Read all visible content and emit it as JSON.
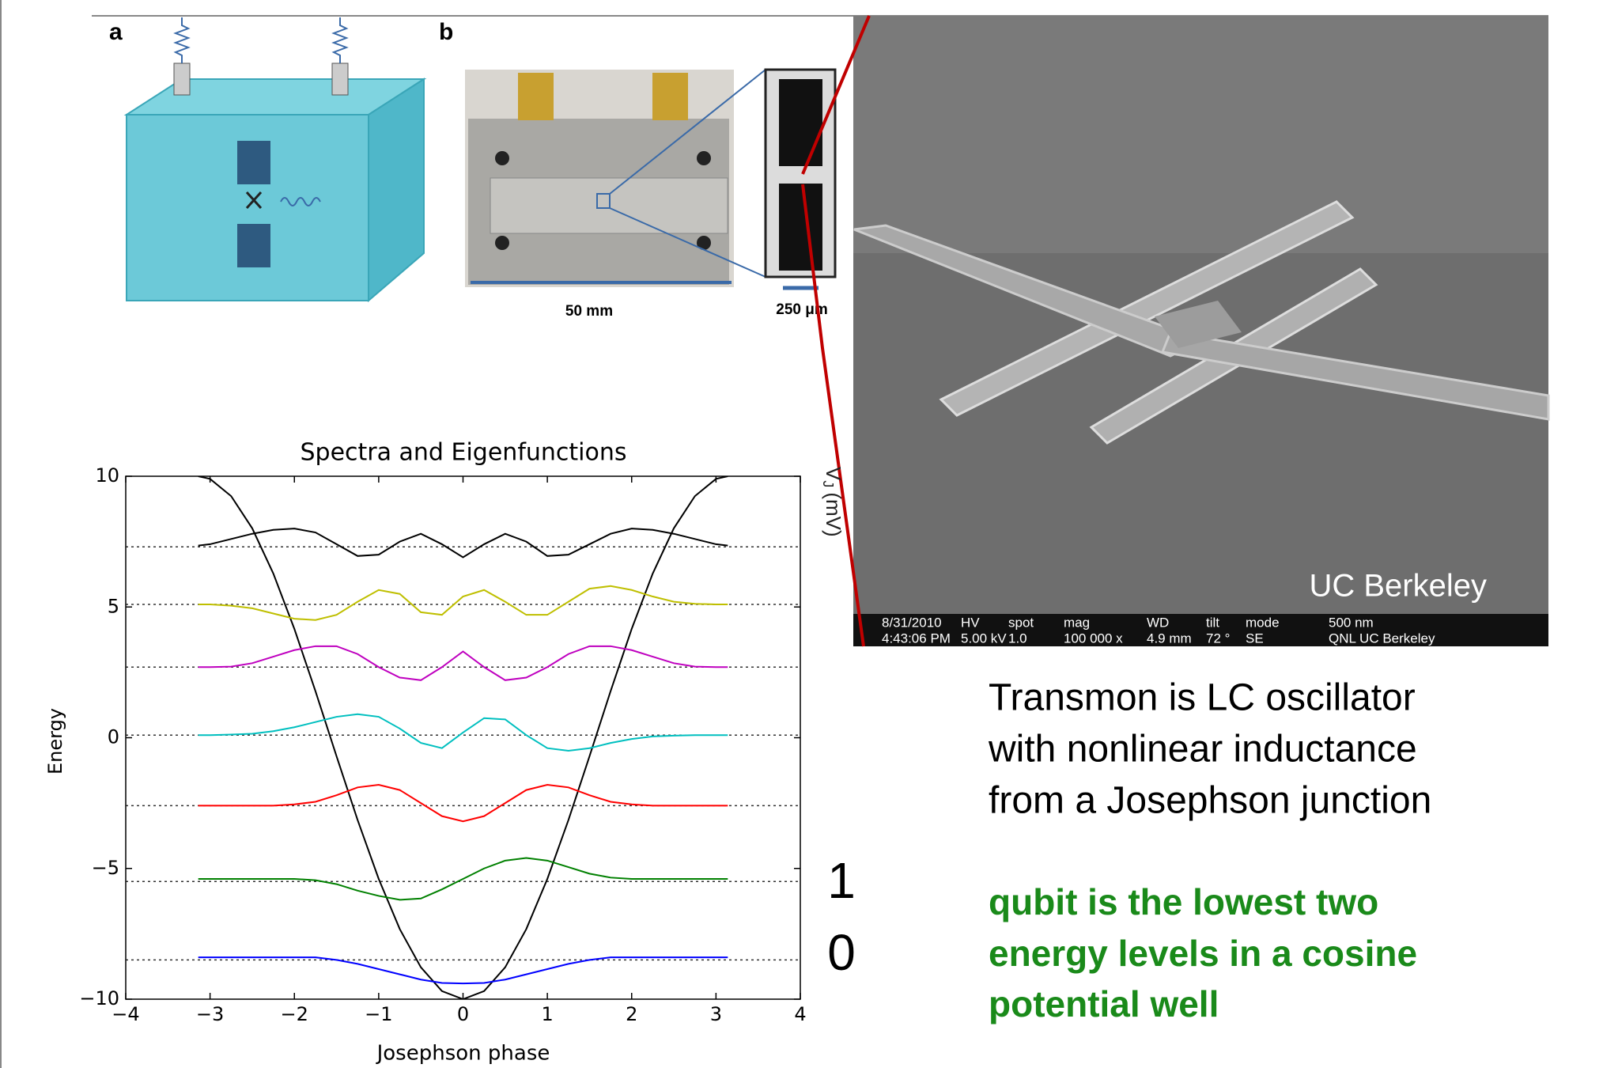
{
  "panel_a": {
    "label": "a"
  },
  "panel_b": {
    "label": "b",
    "scale_left": "50 mm",
    "scale_right": "250 μm"
  },
  "sem": {
    "watermark": "UC Berkeley",
    "info_headers": [
      "8/31/2010",
      "HV",
      "spot",
      "mag",
      "WD",
      "tilt",
      "mode",
      "500 nm"
    ],
    "info_values": [
      "4:43:06 PM",
      "5.00 kV",
      "1.0",
      "100 000 x",
      "4.9 mm",
      "72 °",
      "SE",
      "QNL UC Berkeley"
    ]
  },
  "side_axis_label": {
    "symbol": "V",
    "subscript": "J",
    "unit": "(mV)"
  },
  "level_labels": [
    "1",
    "0"
  ],
  "description": [
    "Transmon is LC oscillator",
    "with nonlinear inductance",
    "from a Josephson junction"
  ],
  "highlight": [
    "qubit is the lowest two",
    "energy levels in a cosine",
    "potential well"
  ],
  "chart_data": {
    "type": "line",
    "title": "Spectra and Eigenfunctions",
    "x_label": "Josephson phase",
    "y_label": "Energy",
    "x": [
      -3.14,
      -3,
      -2.75,
      -2.5,
      -2.25,
      -2,
      -1.75,
      -1.5,
      -1.25,
      -1,
      -0.75,
      -0.5,
      -0.25,
      0,
      0.25,
      0.5,
      0.75,
      1,
      1.25,
      1.5,
      1.75,
      2,
      2.25,
      2.5,
      2.75,
      3,
      3.14
    ],
    "series": [
      {
        "color": "#000000",
        "values": [
          10,
          9.9,
          9.24,
          8.01,
          6.28,
          4.16,
          1.78,
          -0.71,
          -3.15,
          -5.4,
          -7.32,
          -8.78,
          -9.69,
          -10,
          -9.69,
          -8.78,
          -7.32,
          -5.4,
          -3.15,
          -0.71,
          1.78,
          4.16,
          6.28,
          8.01,
          9.24,
          9.9,
          10
        ]
      },
      {
        "color": "#000000",
        "values": [
          7.35,
          7.4,
          7.6,
          7.8,
          7.95,
          8.0,
          7.85,
          7.4,
          6.95,
          7.0,
          7.5,
          7.8,
          7.4,
          6.9,
          7.4,
          7.8,
          7.5,
          6.95,
          7.0,
          7.4,
          7.8,
          8.0,
          7.95,
          7.8,
          7.6,
          7.4,
          7.35
        ]
      },
      {
        "color": "#bfbf00",
        "values": [
          5.1,
          5.1,
          5.05,
          4.95,
          4.75,
          4.55,
          4.5,
          4.7,
          5.2,
          5.65,
          5.5,
          4.8,
          4.7,
          5.4,
          5.65,
          5.2,
          4.7,
          4.7,
          5.2,
          5.7,
          5.8,
          5.65,
          5.4,
          5.2,
          5.12,
          5.1,
          5.1
        ]
      },
      {
        "color": "#bf00bf",
        "values": [
          2.7,
          2.7,
          2.72,
          2.85,
          3.1,
          3.35,
          3.5,
          3.5,
          3.2,
          2.7,
          2.3,
          2.2,
          2.7,
          3.3,
          2.7,
          2.2,
          2.3,
          2.7,
          3.2,
          3.5,
          3.5,
          3.35,
          3.1,
          2.85,
          2.72,
          2.7,
          2.7
        ]
      },
      {
        "color": "#00bfbf",
        "values": [
          0.1,
          0.1,
          0.12,
          0.15,
          0.25,
          0.4,
          0.6,
          0.8,
          0.9,
          0.8,
          0.35,
          -0.2,
          -0.4,
          0.2,
          0.75,
          0.7,
          0.1,
          -0.4,
          -0.5,
          -0.4,
          -0.2,
          -0.05,
          0.05,
          0.08,
          0.1,
          0.1,
          0.1
        ]
      },
      {
        "color": "#ff0000",
        "values": [
          -2.6,
          -2.6,
          -2.6,
          -2.6,
          -2.6,
          -2.55,
          -2.45,
          -2.2,
          -1.9,
          -1.8,
          -2.0,
          -2.5,
          -3.0,
          -3.2,
          -3.0,
          -2.5,
          -2.0,
          -1.8,
          -1.9,
          -2.2,
          -2.45,
          -2.55,
          -2.6,
          -2.6,
          -2.6,
          -2.6,
          -2.6
        ]
      },
      {
        "color": "#008000",
        "values": [
          -5.4,
          -5.4,
          -5.4,
          -5.4,
          -5.4,
          -5.4,
          -5.45,
          -5.6,
          -5.85,
          -6.05,
          -6.2,
          -6.15,
          -5.8,
          -5.4,
          -5.0,
          -4.7,
          -4.6,
          -4.7,
          -4.95,
          -5.2,
          -5.35,
          -5.4,
          -5.4,
          -5.4,
          -5.4,
          -5.4,
          -5.4
        ]
      },
      {
        "color": "#0000ff",
        "values": [
          -8.4,
          -8.4,
          -8.4,
          -8.4,
          -8.4,
          -8.4,
          -8.4,
          -8.5,
          -8.65,
          -8.85,
          -9.05,
          -9.25,
          -9.38,
          -9.4,
          -9.38,
          -9.25,
          -9.05,
          -8.85,
          -8.65,
          -8.5,
          -8.4,
          -8.4,
          -8.4,
          -8.4,
          -8.4,
          -8.4,
          -8.4
        ]
      }
    ],
    "hlines": [
      7.3,
      5.1,
      2.7,
      0.1,
      -2.6,
      -5.5,
      -8.5
    ],
    "xlim": [
      -4,
      4
    ],
    "ylim": [
      -10,
      10
    ],
    "xticks": [
      {
        "value": -4,
        "label": "−4"
      },
      {
        "value": -3,
        "label": "−3"
      },
      {
        "value": -2,
        "label": "−2"
      },
      {
        "value": -1,
        "label": "−1"
      },
      0,
      1,
      2,
      3,
      4
    ],
    "yticks": [
      {
        "value": -10,
        "label": "−10"
      },
      {
        "value": -5,
        "label": "−5"
      },
      0,
      5,
      10
    ]
  }
}
